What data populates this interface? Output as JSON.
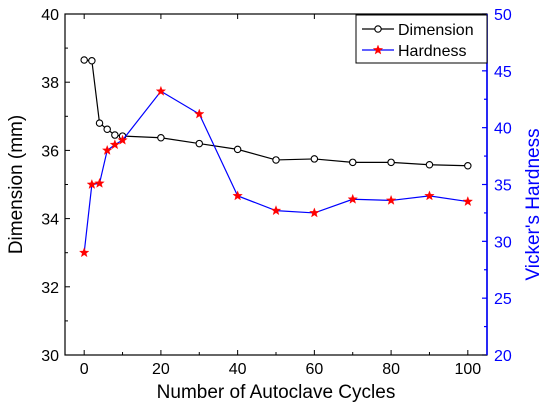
{
  "chart_data": {
    "type": "line",
    "title": "",
    "xlabel": "Number of Autoclave Cycles",
    "ylabel_left": "Dimension (mm)",
    "ylabel_right": "Vicker's Hardness",
    "xlim": [
      -5,
      105
    ],
    "ylim_left": [
      30,
      40
    ],
    "ylim_right": [
      20,
      50
    ],
    "x_ticks": [
      0,
      20,
      40,
      60,
      80,
      100
    ],
    "y_ticks_left": [
      30,
      32,
      34,
      36,
      38,
      40
    ],
    "y_ticks_right": [
      20,
      25,
      30,
      35,
      40,
      45,
      50
    ],
    "grid": false,
    "legend_position": "top-right",
    "right_axis_color": "#0000ff",
    "series": [
      {
        "name": "Dimension",
        "axis": "left",
        "color": "#000000",
        "marker": "open-circle",
        "x": [
          0,
          2,
          4,
          6,
          8,
          10,
          20,
          30,
          40,
          50,
          60,
          70,
          80,
          90,
          100
        ],
        "values": [
          38.65,
          38.63,
          36.8,
          36.62,
          36.45,
          36.42,
          36.37,
          36.2,
          36.03,
          35.72,
          35.75,
          35.65,
          35.65,
          35.58,
          35.55
        ]
      },
      {
        "name": "Hardness",
        "axis": "right",
        "color": "#0000ff",
        "marker_color": "#ff0000",
        "marker": "star",
        "x": [
          0,
          2,
          4,
          6,
          8,
          10,
          20,
          30,
          40,
          50,
          60,
          70,
          80,
          90,
          100
        ],
        "values": [
          29.0,
          35.0,
          35.1,
          38.0,
          38.5,
          38.9,
          43.2,
          41.2,
          34.0,
          32.7,
          32.5,
          33.7,
          33.6,
          34.0,
          33.5
        ]
      }
    ]
  }
}
